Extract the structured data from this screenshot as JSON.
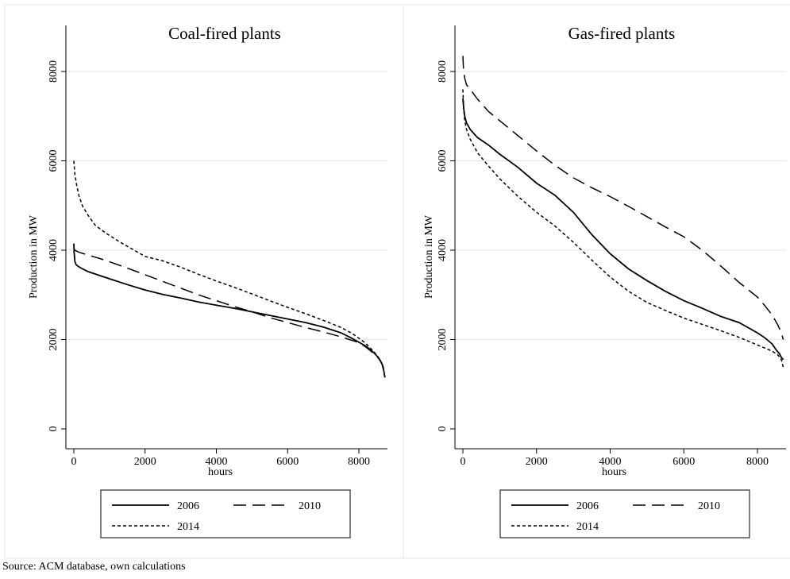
{
  "source_note": "Source: ACM database, own calculations",
  "style": {
    "line_color": "#000000",
    "grid_color": "#dde6ec",
    "frame_color": "#e6e6e6",
    "background": "#ffffff"
  },
  "chart_data": [
    {
      "type": "line",
      "title": "Coal-fired plants",
      "xlabel": "hours",
      "ylabel": "Production in MW",
      "xlim": [
        0,
        8760
      ],
      "ylim": [
        0,
        8000
      ],
      "xticks": [
        0,
        2000,
        4000,
        6000,
        8000
      ],
      "yticks": [
        0,
        2000,
        4000,
        6000,
        8000
      ],
      "grid": true,
      "legend_position": "bottom",
      "series": [
        {
          "name": "2006",
          "dash": "solid",
          "x": [
            0,
            10,
            30,
            60,
            100,
            200,
            400,
            700,
            1000,
            1500,
            2000,
            2500,
            3000,
            3500,
            4000,
            4500,
            5000,
            5500,
            6000,
            6500,
            7000,
            7500,
            7800,
            8000,
            8200,
            8400,
            8500,
            8600,
            8650,
            8700,
            8730
          ],
          "y": [
            4150,
            3950,
            3750,
            3680,
            3650,
            3600,
            3520,
            3440,
            3360,
            3230,
            3110,
            3010,
            2930,
            2840,
            2770,
            2700,
            2620,
            2540,
            2460,
            2380,
            2280,
            2150,
            2030,
            1940,
            1850,
            1720,
            1640,
            1530,
            1450,
            1300,
            1150
          ]
        },
        {
          "name": "2010",
          "dash": "longdash",
          "x": [
            0,
            30,
            100,
            200,
            400,
            700,
            1000,
            1500,
            2000,
            2500,
            3000,
            3500,
            4000,
            4500,
            5000,
            5500,
            6000,
            6500,
            7000,
            7500,
            8000,
            8200,
            8400,
            8550,
            8650,
            8700,
            8730
          ],
          "y": [
            4030,
            4000,
            3970,
            3940,
            3890,
            3820,
            3740,
            3600,
            3450,
            3300,
            3150,
            3000,
            2870,
            2740,
            2620,
            2490,
            2380,
            2270,
            2170,
            2060,
            1930,
            1830,
            1700,
            1580,
            1460,
            1350,
            1250
          ]
        },
        {
          "name": "2014",
          "dash": "shortdash",
          "x": [
            0,
            30,
            80,
            150,
            250,
            400,
            600,
            900,
            1300,
            1800,
            2000,
            2500,
            3000,
            3500,
            4000,
            4500,
            5000,
            5500,
            6000,
            6500,
            7000,
            7500,
            7800,
            8000,
            8200,
            8400,
            8550,
            8650,
            8720
          ],
          "y": [
            6000,
            5700,
            5450,
            5200,
            4980,
            4780,
            4560,
            4380,
            4180,
            3950,
            3860,
            3760,
            3620,
            3460,
            3310,
            3170,
            3020,
            2870,
            2720,
            2580,
            2430,
            2270,
            2140,
            2030,
            1910,
            1750,
            1600,
            1450,
            1300
          ]
        }
      ]
    },
    {
      "type": "line",
      "title": "Gas-fired plants",
      "xlabel": "hours",
      "ylabel": "Production in MW",
      "xlim": [
        0,
        8760
      ],
      "ylim": [
        0,
        8000
      ],
      "xticks": [
        0,
        2000,
        4000,
        6000,
        8000
      ],
      "yticks": [
        0,
        2000,
        4000,
        6000,
        8000
      ],
      "grid": true,
      "legend_position": "bottom",
      "series": [
        {
          "name": "2006",
          "dash": "solid",
          "x": [
            0,
            20,
            50,
            100,
            200,
            400,
            700,
            1000,
            1500,
            2000,
            2500,
            3000,
            3500,
            4000,
            4500,
            5000,
            5500,
            6000,
            6500,
            7000,
            7500,
            8000,
            8200,
            8400,
            8500,
            8600,
            8650,
            8700
          ],
          "y": [
            7400,
            7200,
            7000,
            6850,
            6700,
            6520,
            6350,
            6150,
            5850,
            5500,
            5230,
            4850,
            4350,
            3920,
            3580,
            3320,
            3080,
            2870,
            2700,
            2520,
            2380,
            2150,
            2040,
            1900,
            1780,
            1680,
            1600,
            1550
          ]
        },
        {
          "name": "2010",
          "dash": "longdash",
          "x": [
            0,
            20,
            50,
            100,
            200,
            400,
            700,
            1000,
            1500,
            2000,
            2500,
            3000,
            3500,
            4000,
            4500,
            5000,
            5500,
            6000,
            6500,
            7000,
            7500,
            8000,
            8200,
            8400,
            8550,
            8650,
            8700
          ],
          "y": [
            8350,
            8000,
            7850,
            7700,
            7600,
            7380,
            7100,
            6900,
            6560,
            6220,
            5900,
            5620,
            5400,
            5200,
            4980,
            4750,
            4520,
            4300,
            4000,
            3650,
            3280,
            2950,
            2760,
            2550,
            2330,
            2150,
            2000
          ]
        },
        {
          "name": "2014",
          "dash": "shortdash",
          "x": [
            0,
            20,
            50,
            100,
            200,
            400,
            700,
            1000,
            1500,
            2000,
            2500,
            3000,
            3500,
            4000,
            4500,
            5000,
            5500,
            6000,
            6500,
            7000,
            7500,
            8000,
            8200,
            8400,
            8550,
            8650,
            8700
          ],
          "y": [
            7600,
            7200,
            6900,
            6700,
            6480,
            6180,
            5880,
            5600,
            5200,
            4850,
            4540,
            4180,
            3780,
            3400,
            3080,
            2830,
            2650,
            2480,
            2340,
            2200,
            2050,
            1880,
            1810,
            1740,
            1660,
            1550,
            1380
          ]
        }
      ]
    }
  ]
}
